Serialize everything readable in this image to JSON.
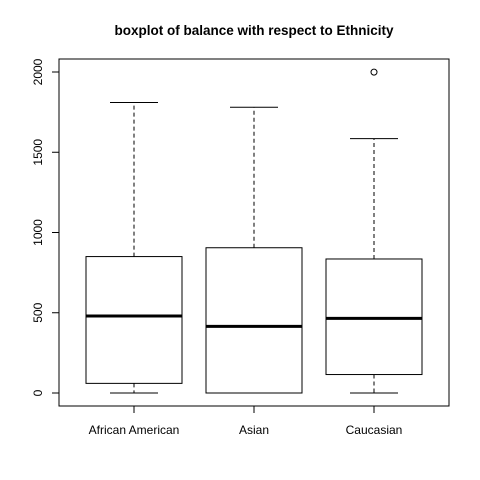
{
  "chart_data": {
    "type": "boxplot",
    "title": "boxplot of balance with respect to Ethnicity",
    "xlabel": "",
    "ylabel": "",
    "ylim": [
      -80,
      2080
    ],
    "yticks": [
      0,
      500,
      1000,
      1500,
      2000
    ],
    "ytick_labels": [
      "0",
      "500",
      "1000",
      "1500",
      "2000"
    ],
    "grid": false,
    "legend": "none",
    "categories": [
      "African American",
      "Asian",
      "Caucasian"
    ],
    "boxes": [
      {
        "category": "African American",
        "whisker_low": 0,
        "q1": 60,
        "median": 480,
        "q3": 850,
        "whisker_high": 1810,
        "outliers": []
      },
      {
        "category": "Asian",
        "whisker_low": 0,
        "q1": 0,
        "median": 415,
        "q3": 905,
        "whisker_high": 1780,
        "outliers": []
      },
      {
        "category": "Caucasian",
        "whisker_low": 0,
        "q1": 115,
        "median": 465,
        "q3": 835,
        "whisker_high": 1585,
        "outliers": [
          1999
        ]
      }
    ]
  }
}
